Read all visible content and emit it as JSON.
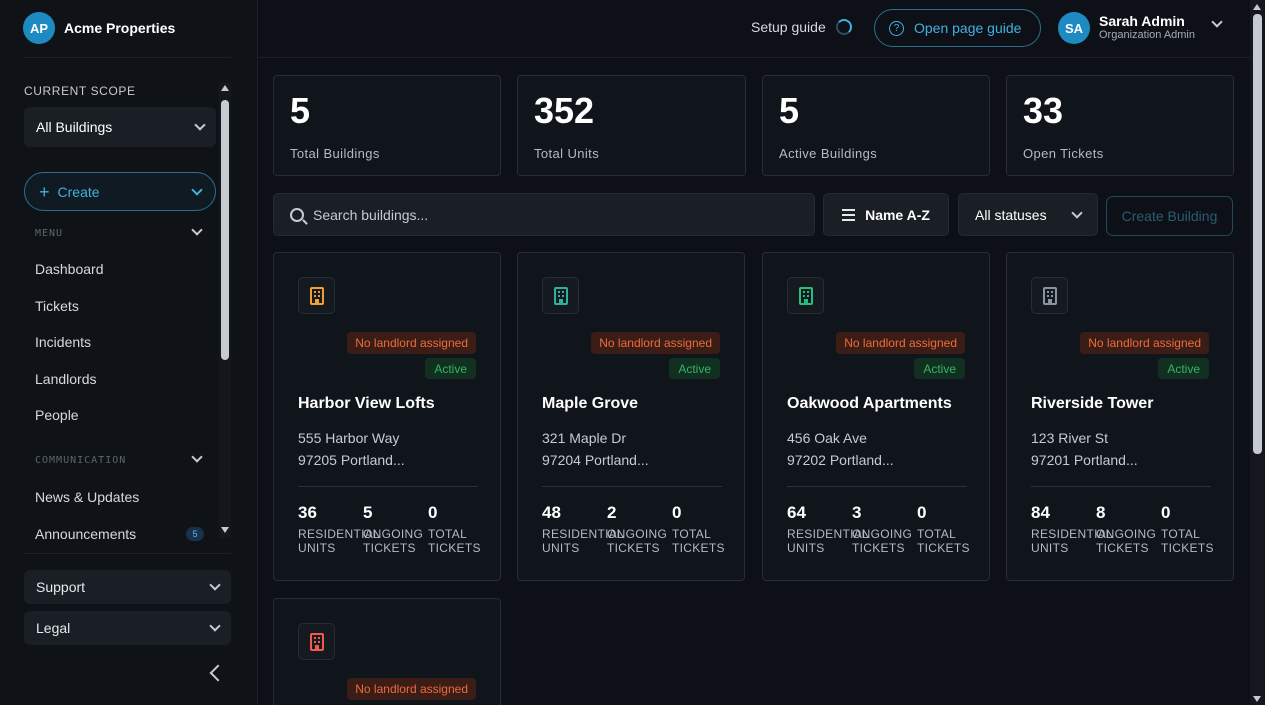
{
  "brand": {
    "initials": "AP",
    "name": "Acme Properties"
  },
  "sidebar": {
    "scope_label": "CURRENT SCOPE",
    "scope_value": "All Buildings",
    "create_label": "Create",
    "menu_label": "MENU",
    "menu_items": [
      "Dashboard",
      "Tickets",
      "Incidents",
      "Landlords",
      "People"
    ],
    "communication_label": "COMMUNICATION",
    "communication_items": [
      "News & Updates",
      "Announcements"
    ],
    "announcements_badge": "5",
    "support_label": "Support",
    "legal_label": "Legal"
  },
  "header": {
    "setup_guide": "Setup guide",
    "page_guide": "Open page guide",
    "user_initials": "SA",
    "user_name": "Sarah Admin",
    "user_role": "Organization Admin"
  },
  "stats": [
    {
      "value": "5",
      "label": "Total Buildings"
    },
    {
      "value": "352",
      "label": "Total Units"
    },
    {
      "value": "5",
      "label": "Active Buildings"
    },
    {
      "value": "33",
      "label": "Open Tickets"
    }
  ],
  "toolbar": {
    "search_placeholder": "Search buildings...",
    "sort_label": "Name A-Z",
    "status_label": "All statuses",
    "create_building": "Create Building"
  },
  "buildings": [
    {
      "name": "Harbor View Lofts",
      "addr1": "555 Harbor Way",
      "addr2": "97205 Portland...",
      "badge": "No landlord assigned",
      "status": "Active",
      "units": "36",
      "ongoing": "5",
      "total": "0",
      "icon_color": "#f0a030",
      "units_label": [
        "RESIDENTIAL",
        "UNITS"
      ],
      "ongoing_label": [
        "ONGOING",
        "TICKETS"
      ],
      "total_label": [
        "TOTAL",
        "TICKETS"
      ]
    },
    {
      "name": "Maple Grove",
      "addr1": "321 Maple Dr",
      "addr2": "97204 Portland...",
      "badge": "No landlord assigned",
      "status": "Active",
      "units": "48",
      "ongoing": "2",
      "total": "0",
      "icon_color": "#2bb3a0",
      "units_label": [
        "RESIDENTIAL",
        "UNITS"
      ],
      "ongoing_label": [
        "ONGOING",
        "TICKETS"
      ],
      "total_label": [
        "TOTAL",
        "TICKETS"
      ]
    },
    {
      "name": "Oakwood Apartments",
      "addr1": "456 Oak Ave",
      "addr2": "97202 Portland...",
      "badge": "No landlord assigned",
      "status": "Active",
      "units": "64",
      "ongoing": "3",
      "total": "0",
      "icon_color": "#22c07a",
      "units_label": [
        "RESIDENTIAL",
        "UNITS"
      ],
      "ongoing_label": [
        "ONGOING",
        "TICKETS"
      ],
      "total_label": [
        "TOTAL",
        "TICKETS"
      ]
    },
    {
      "name": "Riverside Tower",
      "addr1": "123 River St",
      "addr2": "97201 Portland...",
      "badge": "No landlord assigned",
      "status": "Active",
      "units": "84",
      "ongoing": "8",
      "total": "0",
      "icon_color": "#8a939e",
      "units_label": [
        "RESIDENTIAL",
        "UNITS"
      ],
      "ongoing_label": [
        "ONGOING",
        "TICKETS"
      ],
      "total_label": [
        "TOTAL",
        "TICKETS"
      ]
    },
    {
      "name": "",
      "addr1": "",
      "addr2": "",
      "badge": "No landlord assigned",
      "status": "",
      "icon_color": "#f05a4a"
    }
  ]
}
